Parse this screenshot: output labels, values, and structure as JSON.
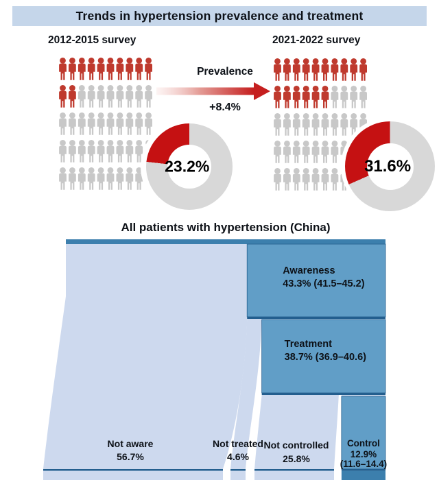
{
  "header": {
    "title": "Trends in hypertension prevalence and treatment"
  },
  "prevalence_annotation": {
    "label": "Prevalence",
    "delta": "+8.4%"
  },
  "colors": {
    "banner_bg": "#c5d6ea",
    "text": "#0d1117",
    "person_red": "#bf3a2e",
    "person_gray": "#c8c8c8",
    "donut_red": "#c51112",
    "donut_gray": "#d8d8d8",
    "arrow_red": "#c51f1f",
    "delta_text": "#e2625c",
    "sankey_bar": "#3c7fad",
    "sankey_box": "#619ec7",
    "sankey_flow": "#cdd9ee",
    "sankey_line": "#235e8e",
    "sankey_gap": "#c9d8ec"
  },
  "chart_data": [
    {
      "type": "pictogram",
      "title": "2012-2015 survey",
      "rows": 5,
      "cols": 10,
      "total_icons": 50,
      "highlighted_icons": 12,
      "highlighted_per_row": [
        10,
        2,
        0,
        0,
        0
      ],
      "donut": {
        "type": "pie",
        "label": "23.2%",
        "value": 23.2,
        "remainder": 76.8,
        "sweep": "counterclockwise-from-12"
      }
    },
    {
      "type": "pictogram",
      "title": "2021-2022 survey",
      "rows": 5,
      "cols": 10,
      "total_icons": 50,
      "highlighted_icons": 16,
      "highlighted_per_row": [
        10,
        6,
        0,
        0,
        0
      ],
      "donut": {
        "type": "pie",
        "label": "31.6%",
        "value": 31.6,
        "remainder": 68.4,
        "sweep": "counterclockwise-from-12"
      }
    },
    {
      "type": "sankey",
      "title": "All patients with hypertension (China)",
      "source_total_pct": 100,
      "stages": [
        {
          "kept": {
            "name": "Awareness",
            "value": 43.3,
            "ci_low": 41.5,
            "ci_high": 45.2,
            "label": "Awareness",
            "value_label": "43.3% (41.5–45.2)"
          },
          "dropped": {
            "name": "Not aware",
            "value": 56.7,
            "label": "Not aware",
            "value_label": "56.7%"
          }
        },
        {
          "kept": {
            "name": "Treatment",
            "value": 38.7,
            "ci_low": 36.9,
            "ci_high": 40.6,
            "label": "Treatment",
            "value_label": "38.7% (36.9–40.6)"
          },
          "dropped": {
            "name": "Not treated",
            "value": 4.6,
            "label": "Not treated",
            "value_label": "4.6%"
          }
        },
        {
          "kept": {
            "name": "Control",
            "value": 12.9,
            "ci_low": 11.6,
            "ci_high": 14.4,
            "label": "Control",
            "value_label": "12.9%",
            "ci_label": "(11.6–14.4)"
          },
          "dropped": {
            "name": "Not controlled",
            "value": 25.8,
            "label": "Not controlled",
            "value_label": "25.8%"
          }
        }
      ]
    }
  ]
}
